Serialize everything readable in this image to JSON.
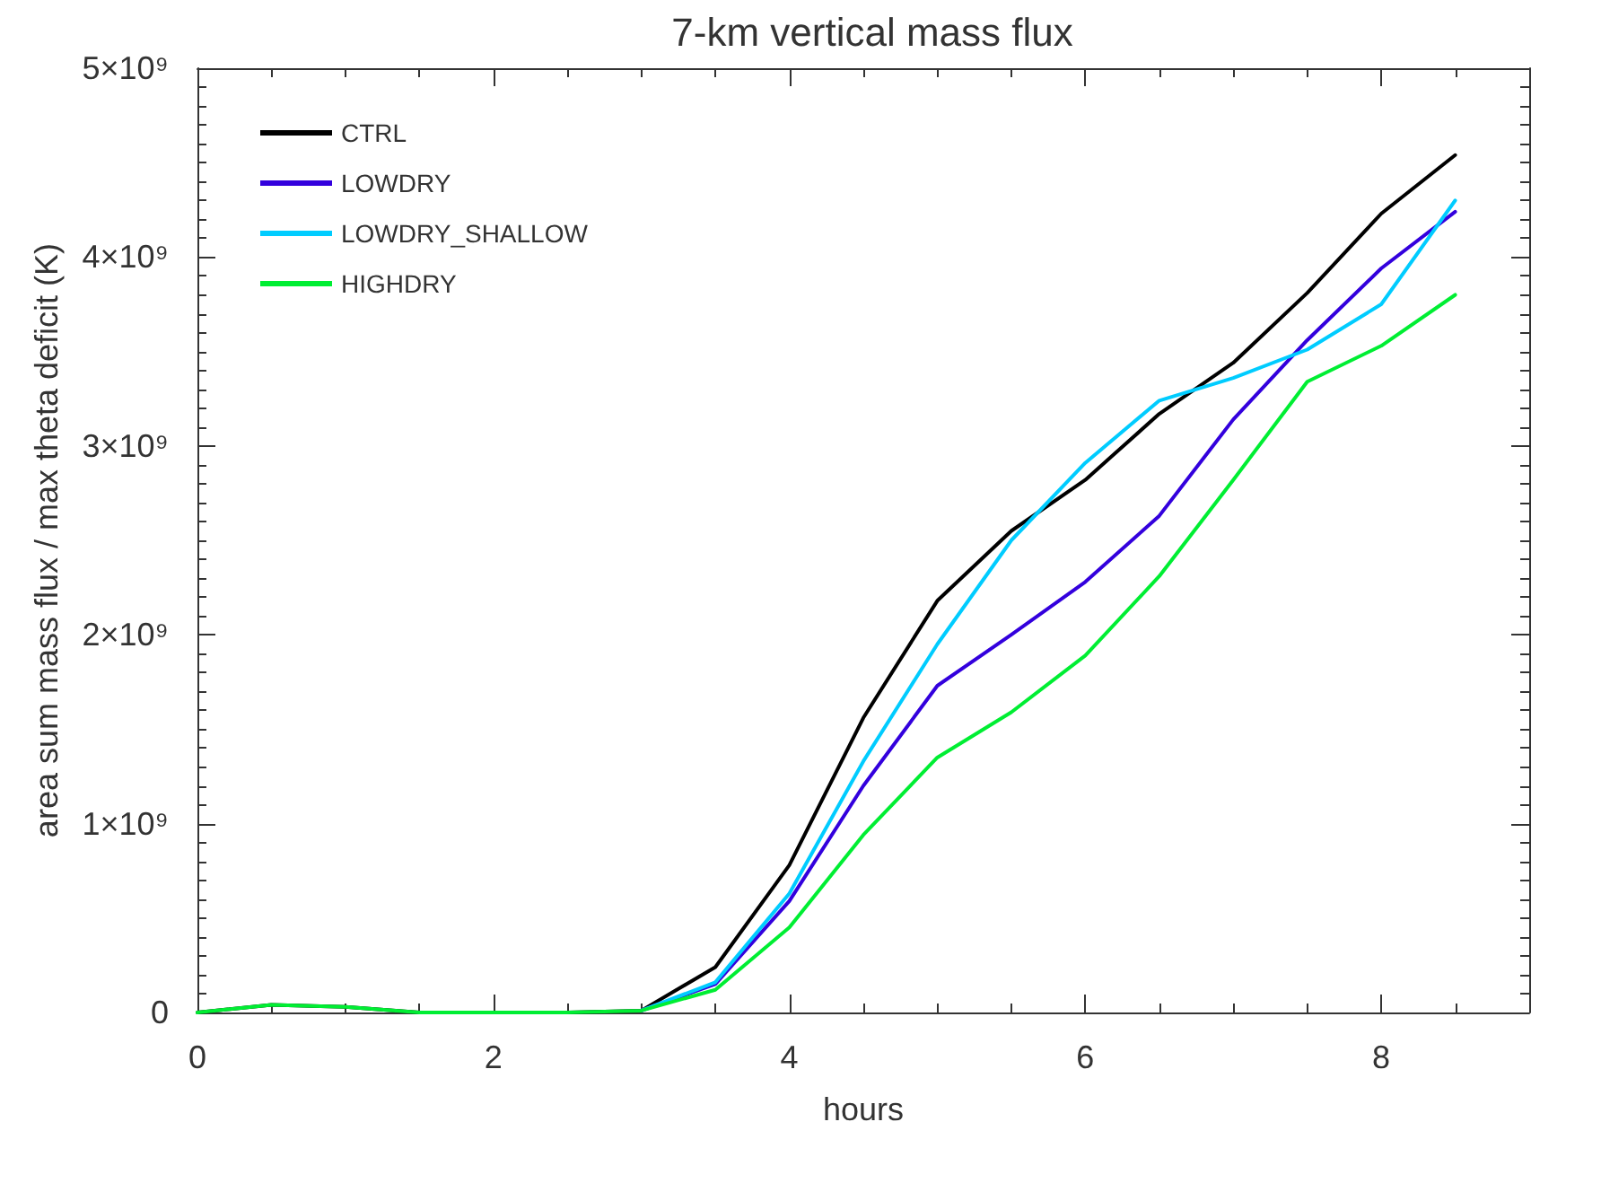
{
  "chart_data": {
    "type": "line",
    "title": "7-km vertical mass flux",
    "xlabel": "hours",
    "ylabel": "area sum mass flux / max theta deficit (K)",
    "x": [
      0,
      0.5,
      1,
      1.5,
      2,
      2.5,
      3,
      3.5,
      4,
      4.5,
      5,
      5.5,
      6,
      6.5,
      7,
      7.5,
      8,
      8.5
    ],
    "series": [
      {
        "name": "CTRL",
        "color": "#000000",
        "values": [
          0,
          40000000,
          30000000,
          0,
          0,
          0,
          10000000,
          240000000,
          780000000,
          1560000000,
          2180000000,
          2550000000,
          2820000000,
          3170000000,
          3440000000,
          3810000000,
          4230000000,
          4540000000
        ]
      },
      {
        "name": "LOWDRY",
        "color": "#3300dd",
        "values": [
          null,
          null,
          null,
          null,
          null,
          null,
          10000000,
          150000000,
          590000000,
          1200000000,
          1730000000,
          2000000000,
          2280000000,
          2630000000,
          3140000000,
          3560000000,
          3940000000,
          4240000000
        ]
      },
      {
        "name": "LOWDRY_SHALLOW",
        "color": "#00ccff",
        "values": [
          null,
          null,
          null,
          null,
          null,
          null,
          10000000,
          160000000,
          630000000,
          1330000000,
          1950000000,
          2500000000,
          2910000000,
          3240000000,
          3360000000,
          3510000000,
          3750000000,
          4300000000
        ]
      },
      {
        "name": "HIGHDRY",
        "color": "#00ee33",
        "values": [
          0,
          40000000,
          30000000,
          0,
          0,
          0,
          10000000,
          120000000,
          450000000,
          940000000,
          1350000000,
          1590000000,
          1890000000,
          2310000000,
          2820000000,
          3340000000,
          3530000000,
          3800000000
        ]
      }
    ],
    "xlim": [
      0,
      9
    ],
    "xticks": [
      0,
      2,
      4,
      6,
      8
    ],
    "ylim": [
      0,
      5000000000
    ],
    "yticks": [
      {
        "value": 0,
        "label": "0"
      },
      {
        "value": 1000000000,
        "label": "1×10⁹"
      },
      {
        "value": 2000000000,
        "label": "2×10⁹"
      },
      {
        "value": 3000000000,
        "label": "3×10⁹"
      },
      {
        "value": 4000000000,
        "label": "4×10⁹"
      },
      {
        "value": 5000000000,
        "label": "5×10⁹"
      }
    ],
    "legend": "top left",
    "grid": false,
    "marker": "none",
    "line_style": "solid"
  }
}
